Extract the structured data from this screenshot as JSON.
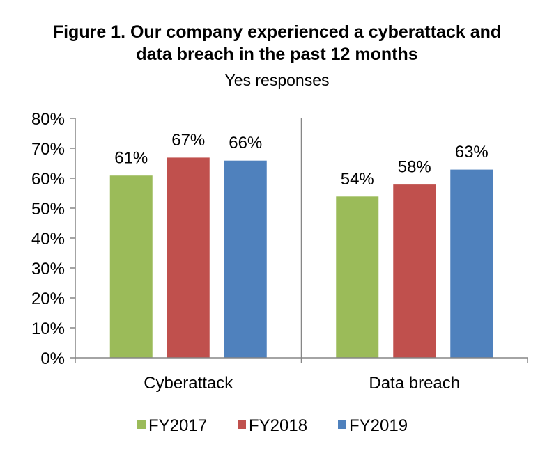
{
  "title_lines": [
    "Figure 1. Our company experienced a cyberattack and",
    "data breach in the past 12 months"
  ],
  "subtitle": "Yes responses",
  "chart_data": {
    "type": "bar",
    "categories": [
      "Cyberattack",
      "Data breach"
    ],
    "series": [
      {
        "name": "FY2017",
        "values": [
          61,
          54
        ],
        "color": "#9BBB59"
      },
      {
        "name": "FY2018",
        "values": [
          67,
          58
        ],
        "color": "#C0504D"
      },
      {
        "name": "FY2019",
        "values": [
          66,
          63
        ],
        "color": "#4F81BD"
      }
    ],
    "value_labels": [
      [
        "61%",
        "54%"
      ],
      [
        "67%",
        "58%"
      ],
      [
        "66%",
        "63%"
      ]
    ],
    "y_ticks": [
      "0%",
      "10%",
      "20%",
      "30%",
      "40%",
      "50%",
      "60%",
      "70%",
      "80%"
    ],
    "ylim": [
      0,
      80
    ],
    "grid": false,
    "legend_position": "bottom"
  }
}
